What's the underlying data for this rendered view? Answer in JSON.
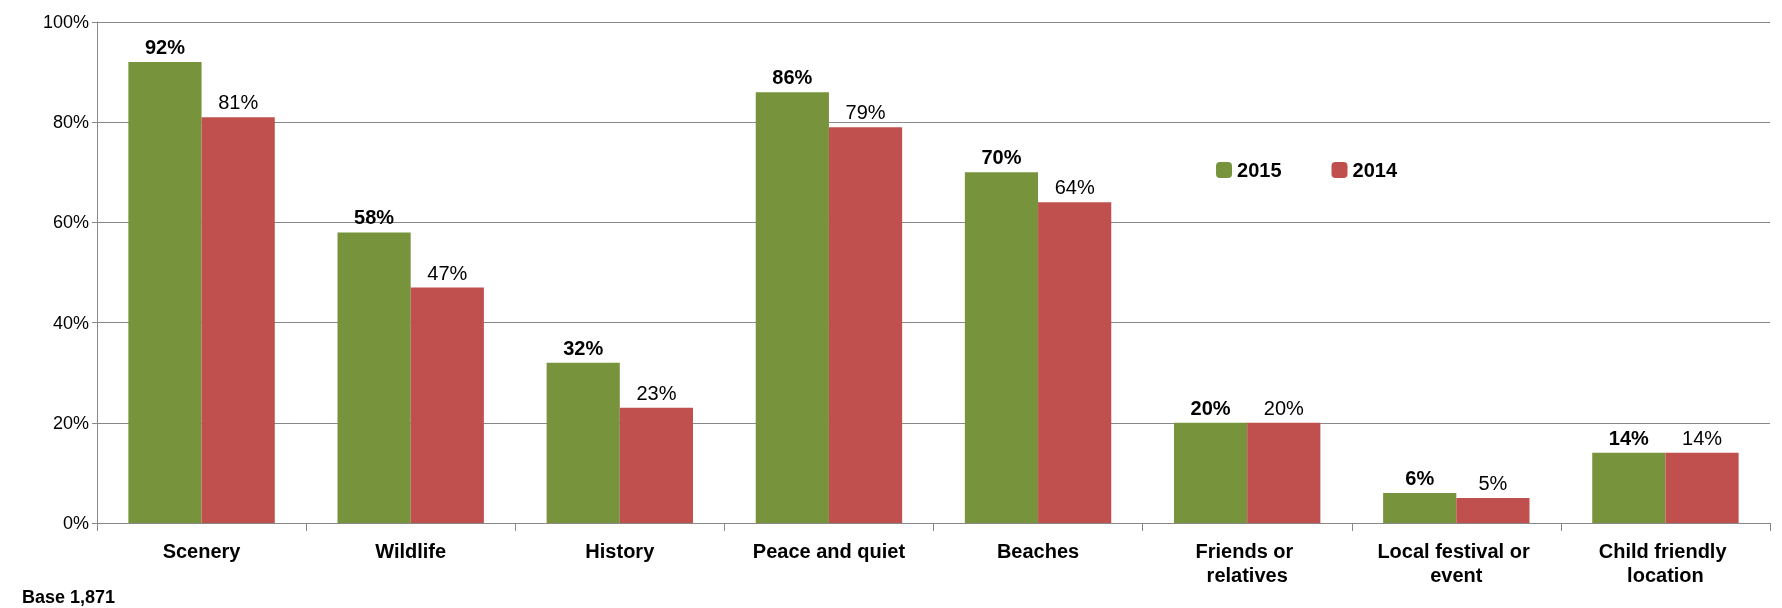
{
  "chart_data": {
    "type": "bar",
    "categories": [
      "Scenery",
      "Wildlife",
      "History",
      "Peace and quiet",
      "Beaches",
      "Friends or relatives",
      "Local festival or event",
      "Child friendly location"
    ],
    "series": [
      {
        "name": "2015",
        "color": "#77933c",
        "values": [
          92,
          58,
          32,
          86,
          70,
          20,
          6,
          14
        ],
        "value_labels": [
          "92%",
          "58%",
          "32%",
          "86%",
          "70%",
          "20%",
          "6%",
          "14%"
        ]
      },
      {
        "name": "2014",
        "color": "#c0504d",
        "values": [
          81,
          47,
          23,
          79,
          64,
          20,
          5,
          14
        ],
        "value_labels": [
          "81%",
          "47%",
          "23%",
          "79%",
          "64%",
          "20%",
          "5%",
          "14%"
        ]
      }
    ],
    "ylim": [
      0,
      100
    ],
    "yticks": [
      {
        "value": 0,
        "label": "0%"
      },
      {
        "value": 20,
        "label": "20%"
      },
      {
        "value": 40,
        "label": "40%"
      },
      {
        "value": 60,
        "label": "60%"
      },
      {
        "value": 80,
        "label": "80%"
      },
      {
        "value": 100,
        "label": "100%"
      }
    ],
    "grid": "y",
    "legend": "top right",
    "annotations": [
      "Base 1,871"
    ]
  }
}
